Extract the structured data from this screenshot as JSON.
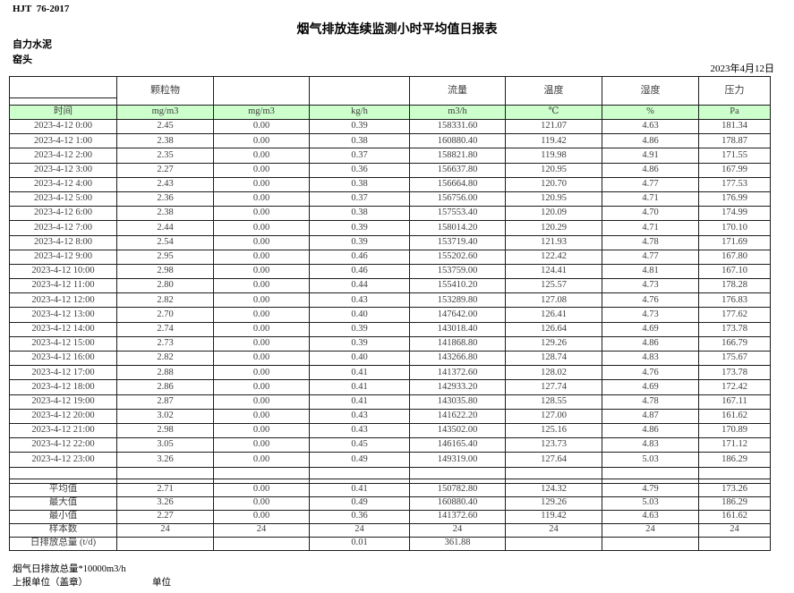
{
  "page": {
    "doc_code": "HJT  76-2017",
    "title": "烟气排放连续监测小时平均值日报表",
    "company": "自力水泥",
    "monitor_point": "窑头",
    "date": "2023年4月12日"
  },
  "colors": {
    "unit_row_green": "#ccffcc",
    "border": "#1c1c1c",
    "text": "#3d3d3d"
  },
  "table": {
    "group_headers": [
      "",
      "颗粒物",
      "",
      "",
      "流量",
      "温度",
      "湿度",
      "压力"
    ],
    "unit_row": [
      "时间",
      "mg/m3",
      "mg/m3",
      "kg/h",
      "m3/h",
      "℃",
      "%",
      "Pa"
    ],
    "rows": [
      [
        "2023-4-12 0:00",
        "2.45",
        "0.00",
        "0.39",
        "158331.60",
        "121.07",
        "4.63",
        "181.34"
      ],
      [
        "2023-4-12 1:00",
        "2.38",
        "0.00",
        "0.38",
        "160880.40",
        "119.42",
        "4.86",
        "178.87"
      ],
      [
        "2023-4-12 2:00",
        "2.35",
        "0.00",
        "0.37",
        "158821.80",
        "119.98",
        "4.91",
        "171.55"
      ],
      [
        "2023-4-12 3:00",
        "2.27",
        "0.00",
        "0.36",
        "156637.80",
        "120.95",
        "4.86",
        "167.99"
      ],
      [
        "2023-4-12 4:00",
        "2.43",
        "0.00",
        "0.38",
        "156664.80",
        "120.70",
        "4.77",
        "177.53"
      ],
      [
        "2023-4-12 5:00",
        "2.36",
        "0.00",
        "0.37",
        "156756.00",
        "120.95",
        "4.71",
        "176.99"
      ],
      [
        "2023-4-12 6:00",
        "2.38",
        "0.00",
        "0.38",
        "157553.40",
        "120.09",
        "4.70",
        "174.99"
      ],
      [
        "2023-4-12 7:00",
        "2.44",
        "0.00",
        "0.39",
        "158014.20",
        "120.29",
        "4.71",
        "170.10"
      ],
      [
        "2023-4-12 8:00",
        "2.54",
        "0.00",
        "0.39",
        "153719.40",
        "121.93",
        "4.78",
        "171.69"
      ],
      [
        "2023-4-12 9:00",
        "2.95",
        "0.00",
        "0.46",
        "155202.60",
        "122.42",
        "4.77",
        "167.80"
      ],
      [
        "2023-4-12 10:00",
        "2.98",
        "0.00",
        "0.46",
        "153759.00",
        "124.41",
        "4.81",
        "167.10"
      ],
      [
        "2023-4-12 11:00",
        "2.80",
        "0.00",
        "0.44",
        "155410.20",
        "125.57",
        "4.73",
        "178.28"
      ],
      [
        "2023-4-12 12:00",
        "2.82",
        "0.00",
        "0.43",
        "153289.80",
        "127.08",
        "4.76",
        "176.83"
      ],
      [
        "2023-4-12 13:00",
        "2.70",
        "0.00",
        "0.40",
        "147642.00",
        "126.41",
        "4.73",
        "177.62"
      ],
      [
        "2023-4-12 14:00",
        "2.74",
        "0.00",
        "0.39",
        "143018.40",
        "126.64",
        "4.69",
        "173.78"
      ],
      [
        "2023-4-12 15:00",
        "2.73",
        "0.00",
        "0.39",
        "141868.80",
        "129.26",
        "4.86",
        "166.79"
      ],
      [
        "2023-4-12 16:00",
        "2.82",
        "0.00",
        "0.40",
        "143266.80",
        "128.74",
        "4.83",
        "175.67"
      ],
      [
        "2023-4-12 17:00",
        "2.88",
        "0.00",
        "0.41",
        "141372.60",
        "128.02",
        "4.76",
        "173.78"
      ],
      [
        "2023-4-12 18:00",
        "2.86",
        "0.00",
        "0.41",
        "142933.20",
        "127.74",
        "4.69",
        "172.42"
      ],
      [
        "2023-4-12 19:00",
        "2.87",
        "0.00",
        "0.41",
        "143035.80",
        "128.55",
        "4.78",
        "167.11"
      ],
      [
        "2023-4-12 20:00",
        "3.02",
        "0.00",
        "0.43",
        "141622.20",
        "127.00",
        "4.87",
        "161.62"
      ],
      [
        "2023-4-12 21:00",
        "2.98",
        "0.00",
        "0.43",
        "143502.00",
        "125.16",
        "4.86",
        "170.89"
      ],
      [
        "2023-4-12 22:00",
        "3.05",
        "0.00",
        "0.45",
        "146165.40",
        "123.73",
        "4.83",
        "171.12"
      ],
      [
        "2023-4-12 23:00",
        "3.26",
        "0.00",
        "0.49",
        "149319.00",
        "127.64",
        "5.03",
        "186.29"
      ]
    ],
    "summary": [
      {
        "label": "平均值",
        "values": [
          "2.71",
          "0.00",
          "0.41",
          "150782.80",
          "124.32",
          "4.79",
          "173.26"
        ]
      },
      {
        "label": "最大值",
        "values": [
          "3.26",
          "0.00",
          "0.49",
          "160880.40",
          "129.26",
          "5.03",
          "186.29"
        ]
      },
      {
        "label": "最小值",
        "values": [
          "2.27",
          "0.00",
          "0.36",
          "141372.60",
          "119.42",
          "4.63",
          "161.62"
        ]
      },
      {
        "label": "样本数",
        "values": [
          "24",
          "24",
          "24",
          "24",
          "24",
          "24",
          "24"
        ]
      },
      {
        "label": "日排放总量 (t/d)",
        "values": [
          "",
          "",
          "0.01",
          "361.88",
          "",
          "",
          ""
        ]
      }
    ]
  },
  "footer": {
    "note": "烟气日排放总量*10000m3/h",
    "stamp_label": "上报单位（盖章）",
    "unit_label": "单位"
  }
}
